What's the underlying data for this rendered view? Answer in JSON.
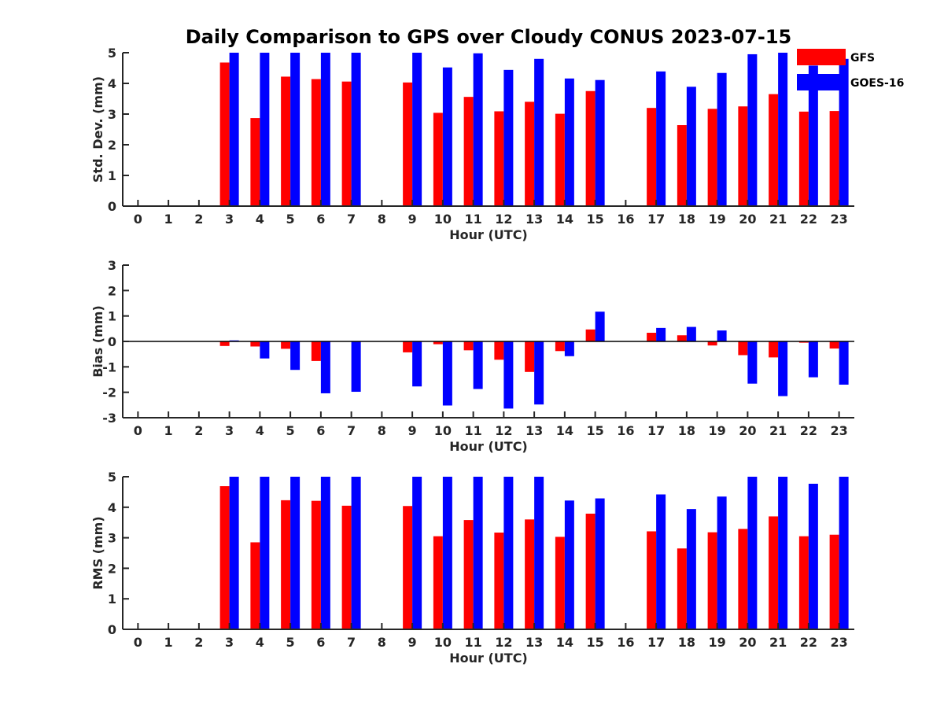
{
  "title": "Daily Comparison to GPS over Cloudy CONUS 2023-07-15",
  "colors": {
    "GFS": "#ff0000",
    "GOES-16": "#0000ff",
    "axis": "#262626"
  },
  "legend": {
    "placement": "top-right",
    "entries": [
      "GFS",
      "GOES-16"
    ]
  },
  "chart_data": [
    {
      "type": "bar",
      "ylabel": "Std. Dev. (mm)",
      "xlabel": "Hour (UTC)",
      "ylim": [
        0,
        5
      ],
      "yticks": [
        0,
        1,
        2,
        3,
        4,
        5
      ],
      "categories": [
        0,
        1,
        2,
        3,
        4,
        5,
        6,
        7,
        8,
        9,
        10,
        11,
        12,
        13,
        14,
        15,
        16,
        17,
        18,
        19,
        20,
        21,
        22,
        23
      ],
      "series": [
        {
          "name": "GFS",
          "values": [
            null,
            null,
            null,
            4.68,
            2.87,
            4.22,
            4.14,
            4.06,
            null,
            4.03,
            3.04,
            3.56,
            3.09,
            3.4,
            3.01,
            3.75,
            null,
            3.2,
            2.64,
            3.17,
            3.25,
            3.65,
            3.08,
            3.1
          ]
        },
        {
          "name": "GOES-16",
          "values": [
            null,
            null,
            null,
            5.0,
            5.0,
            5.0,
            5.0,
            5.0,
            null,
            5.0,
            4.52,
            4.98,
            4.44,
            4.8,
            4.16,
            4.11,
            null,
            4.39,
            3.89,
            4.34,
            4.95,
            5.0,
            4.58,
            4.8
          ]
        }
      ]
    },
    {
      "type": "bar",
      "ylabel": "Bias (mm)",
      "xlabel": "Hour (UTC)",
      "ylim": [
        -3,
        3
      ],
      "yticks": [
        -3,
        -2,
        -1,
        0,
        1,
        2,
        3
      ],
      "categories": [
        0,
        1,
        2,
        3,
        4,
        5,
        6,
        7,
        8,
        9,
        10,
        11,
        12,
        13,
        14,
        15,
        16,
        17,
        18,
        19,
        20,
        21,
        22,
        23
      ],
      "series": [
        {
          "name": "GFS",
          "values": [
            null,
            null,
            null,
            -0.18,
            -0.2,
            -0.29,
            -0.77,
            0.0,
            null,
            -0.43,
            -0.11,
            -0.35,
            -0.72,
            -1.2,
            -0.38,
            0.47,
            null,
            0.34,
            0.24,
            -0.16,
            -0.54,
            -0.63,
            -0.05,
            -0.28
          ]
        },
        {
          "name": "GOES-16",
          "values": [
            null,
            null,
            null,
            0.04,
            -0.67,
            -1.12,
            -2.04,
            -1.98,
            null,
            -1.77,
            -2.52,
            -1.87,
            -2.64,
            -2.48,
            -0.58,
            1.17,
            null,
            0.53,
            0.57,
            0.43,
            -1.66,
            -2.15,
            -1.41,
            -1.7
          ]
        }
      ]
    },
    {
      "type": "bar",
      "ylabel": "RMS (mm)",
      "xlabel": "Hour (UTC)",
      "ylim": [
        0,
        5
      ],
      "yticks": [
        0,
        1,
        2,
        3,
        4,
        5
      ],
      "categories": [
        0,
        1,
        2,
        3,
        4,
        5,
        6,
        7,
        8,
        9,
        10,
        11,
        12,
        13,
        14,
        15,
        16,
        17,
        18,
        19,
        20,
        21,
        22,
        23
      ],
      "series": [
        {
          "name": "GFS",
          "values": [
            null,
            null,
            null,
            4.69,
            2.85,
            4.23,
            4.21,
            4.05,
            null,
            4.04,
            3.05,
            3.58,
            3.17,
            3.6,
            3.03,
            3.79,
            null,
            3.21,
            2.65,
            3.18,
            3.29,
            3.7,
            3.05,
            3.1
          ]
        },
        {
          "name": "GOES-16",
          "values": [
            null,
            null,
            null,
            5.0,
            5.0,
            5.0,
            5.0,
            5.0,
            null,
            5.0,
            5.0,
            5.0,
            5.0,
            5.0,
            4.22,
            4.29,
            null,
            4.42,
            3.94,
            4.35,
            5.0,
            5.0,
            4.77,
            5.0
          ]
        }
      ]
    }
  ]
}
